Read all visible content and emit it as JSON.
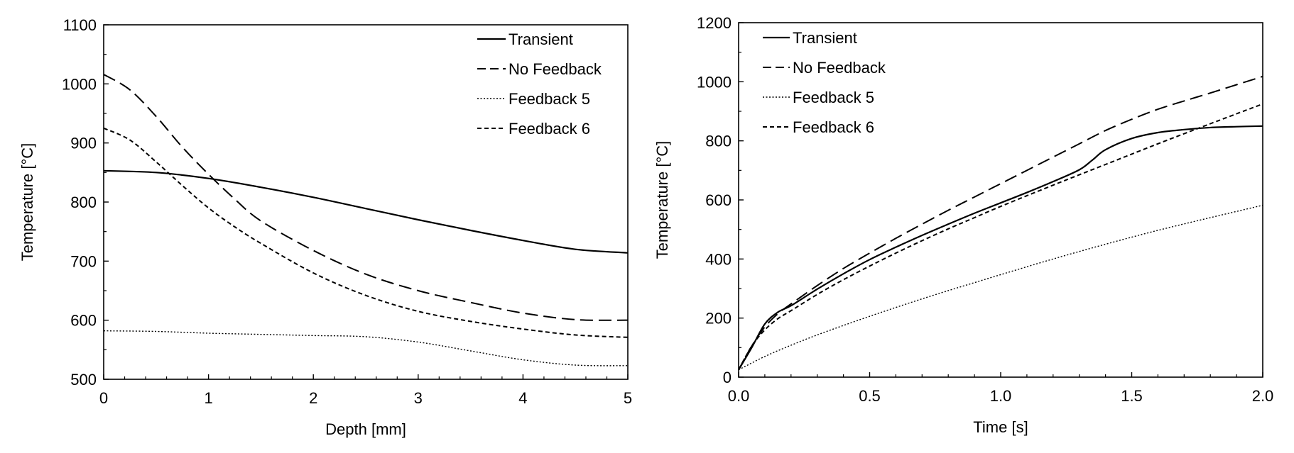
{
  "chart_data": [
    {
      "type": "line",
      "xlabel": "Depth [mm]",
      "ylabel": "Temperature [°C]",
      "xlim": [
        0,
        5
      ],
      "ylim": [
        500,
        1100
      ],
      "xticks": [
        0,
        1,
        2,
        3,
        4,
        5
      ],
      "xtick_labels": [
        "0",
        "1",
        "2",
        "3",
        "4",
        "5"
      ],
      "yticks": [
        500,
        600,
        700,
        800,
        900,
        1000,
        1100
      ],
      "ytick_labels": [
        "500",
        "600",
        "700",
        "800",
        "900",
        "1000",
        "1100"
      ],
      "grid": false,
      "legend_position": "top-right",
      "series": [
        {
          "name": "Transient",
          "style": "solid",
          "x": [
            0,
            0.5,
            1,
            1.5,
            2,
            2.5,
            3,
            3.5,
            4,
            4.5,
            5
          ],
          "y": [
            853,
            850,
            840,
            825,
            808,
            789,
            770,
            752,
            735,
            720,
            714
          ]
        },
        {
          "name": "No Feedback",
          "style": "long-dash",
          "x": [
            0,
            0.25,
            0.5,
            0.75,
            1,
            1.25,
            1.5,
            2,
            2.5,
            3,
            3.5,
            4,
            4.5,
            5
          ],
          "y": [
            1016,
            990,
            945,
            893,
            847,
            805,
            768,
            718,
            678,
            650,
            630,
            612,
            601,
            600
          ]
        },
        {
          "name": "Feedback 5",
          "style": "dotted",
          "x": [
            0,
            0.5,
            1,
            1.5,
            2,
            2.5,
            3,
            3.5,
            4,
            4.5,
            5
          ],
          "y": [
            582,
            581,
            578,
            576,
            574,
            572,
            563,
            548,
            533,
            524,
            523
          ]
        },
        {
          "name": "Feedback 6",
          "style": "short-dash",
          "x": [
            0,
            0.25,
            0.5,
            0.75,
            1,
            1.25,
            1.5,
            2,
            2.5,
            3,
            3.5,
            4,
            4.5,
            5
          ],
          "y": [
            925,
            905,
            868,
            828,
            790,
            758,
            730,
            680,
            642,
            615,
            598,
            585,
            575,
            571
          ]
        }
      ]
    },
    {
      "type": "line",
      "xlabel": "Time [s]",
      "ylabel": "Temperature [°C]",
      "xlim": [
        0,
        2
      ],
      "ylim": [
        0,
        1200
      ],
      "xticks": [
        0,
        0.5,
        1,
        1.5,
        2
      ],
      "xtick_labels": [
        "0.0",
        "0.5",
        "1.0",
        "1.5",
        "2.0"
      ],
      "yticks": [
        0,
        200,
        400,
        600,
        800,
        1000,
        1200
      ],
      "ytick_labels": [
        "0",
        "200",
        "400",
        "600",
        "800",
        "1000",
        "1200"
      ],
      "grid": false,
      "legend_position": "top-left",
      "series": [
        {
          "name": "Transient",
          "style": "solid",
          "x": [
            0,
            0.05,
            0.1,
            0.15,
            0.2,
            0.3,
            0.4,
            0.5,
            0.6,
            0.7,
            0.8,
            0.9,
            1.0,
            1.1,
            1.2,
            1.3,
            1.35,
            1.4,
            1.5,
            1.6,
            1.7,
            1.8,
            1.9,
            2.0
          ],
          "y": [
            25,
            100,
            180,
            220,
            242,
            298,
            350,
            398,
            440,
            480,
            518,
            555,
            590,
            625,
            662,
            702,
            735,
            770,
            808,
            828,
            838,
            845,
            848,
            850
          ]
        },
        {
          "name": "No Feedback",
          "style": "long-dash",
          "x": [
            0,
            0.05,
            0.1,
            0.15,
            0.2,
            0.3,
            0.4,
            0.5,
            0.6,
            0.7,
            0.8,
            0.9,
            1.0,
            1.1,
            1.2,
            1.3,
            1.4,
            1.5,
            1.6,
            1.7,
            1.8,
            1.9,
            2.0
          ],
          "y": [
            25,
            105,
            170,
            215,
            248,
            310,
            368,
            420,
            470,
            518,
            565,
            610,
            655,
            700,
            745,
            790,
            835,
            873,
            907,
            935,
            962,
            990,
            1018
          ]
        },
        {
          "name": "Feedback 5",
          "style": "dotted",
          "x": [
            0,
            0.1,
            0.2,
            0.3,
            0.4,
            0.5,
            0.6,
            0.7,
            0.8,
            0.9,
            1.0,
            1.2,
            1.4,
            1.6,
            1.8,
            2.0
          ],
          "y": [
            25,
            70,
            108,
            143,
            175,
            206,
            236,
            265,
            293,
            320,
            347,
            400,
            450,
            497,
            540,
            582
          ]
        },
        {
          "name": "Feedback 6",
          "style": "short-dash",
          "x": [
            0,
            0.05,
            0.1,
            0.15,
            0.2,
            0.3,
            0.4,
            0.5,
            0.6,
            0.7,
            0.8,
            0.9,
            1.0,
            1.2,
            1.4,
            1.6,
            1.8,
            2.0
          ],
          "y": [
            25,
            105,
            160,
            198,
            225,
            280,
            330,
            376,
            420,
            462,
            502,
            540,
            578,
            650,
            720,
            790,
            858,
            925
          ]
        }
      ]
    }
  ]
}
